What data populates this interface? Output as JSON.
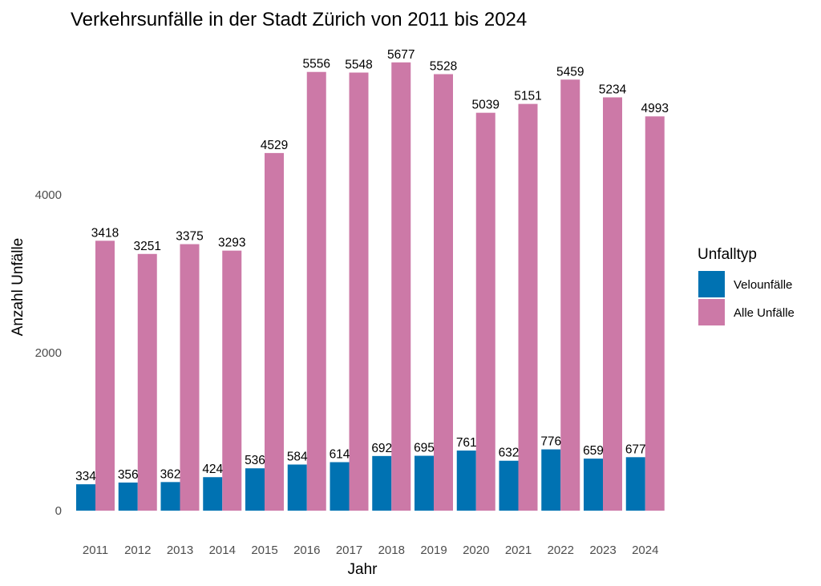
{
  "chart_data": {
    "type": "bar",
    "title": "Verkehrsunfälle in der Stadt Zürich von 2011 bis 2024",
    "xlabel": "Jahr",
    "ylabel": "Anzahl Unfälle",
    "categories": [
      "2011",
      "2012",
      "2013",
      "2014",
      "2015",
      "2016",
      "2017",
      "2018",
      "2019",
      "2020",
      "2021",
      "2022",
      "2023",
      "2024"
    ],
    "series": [
      {
        "name": "Velounfälle",
        "color": "#0072B2",
        "values": [
          334,
          356,
          362,
          424,
          536,
          584,
          614,
          692,
          695,
          761,
          632,
          776,
          659,
          677
        ]
      },
      {
        "name": "Alle Unfälle",
        "color": "#CC79A7",
        "values": [
          3418,
          3251,
          3375,
          3293,
          4529,
          5556,
          5548,
          5677,
          5528,
          5039,
          5151,
          5459,
          5234,
          4993
        ]
      }
    ],
    "yticks": [
      0,
      2000,
      4000
    ],
    "ylim": [
      0,
      5900
    ],
    "grid": false,
    "legend": {
      "title": "Unfalltyp",
      "position": "right"
    },
    "data_labels": true
  }
}
